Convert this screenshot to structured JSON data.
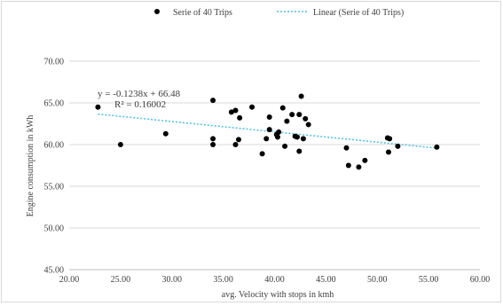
{
  "chart_data": {
    "type": "scatter",
    "title": "",
    "xlabel": "avg. Velocity with stops in kmh",
    "ylabel": "Engine consumption in kWh",
    "xlim": [
      20,
      60
    ],
    "ylim": [
      45,
      70
    ],
    "x_ticks": [
      "20.00",
      "25.00",
      "30.00",
      "35.00",
      "40.00",
      "45.00",
      "50.00",
      "55.00",
      "60.00"
    ],
    "y_ticks": [
      "45.00",
      "50.00",
      "55.00",
      "60.00",
      "65.00",
      "70.00"
    ],
    "grid": "horizontal",
    "legend_position": "top",
    "series": [
      {
        "name": "Serie of 40 Trips",
        "color": "#000000",
        "points": [
          [
            22.8,
            64.5
          ],
          [
            25.0,
            60.0
          ],
          [
            29.4,
            61.3
          ],
          [
            34.0,
            65.3
          ],
          [
            34.0,
            60.7
          ],
          [
            34.0,
            60.0
          ],
          [
            35.8,
            63.9
          ],
          [
            36.2,
            64.1
          ],
          [
            36.2,
            60.0
          ],
          [
            36.5,
            60.6
          ],
          [
            36.6,
            63.2
          ],
          [
            37.8,
            64.5
          ],
          [
            38.8,
            58.9
          ],
          [
            39.2,
            60.7
          ],
          [
            39.5,
            63.3
          ],
          [
            39.5,
            61.8
          ],
          [
            40.2,
            61.2
          ],
          [
            40.3,
            60.9
          ],
          [
            40.4,
            61.5
          ],
          [
            40.8,
            64.4
          ],
          [
            41.0,
            59.8
          ],
          [
            41.2,
            62.8
          ],
          [
            41.7,
            63.6
          ],
          [
            42.0,
            61.0
          ],
          [
            42.4,
            63.6
          ],
          [
            42.4,
            59.2
          ],
          [
            42.6,
            65.8
          ],
          [
            42.8,
            60.7
          ],
          [
            43.0,
            63.1
          ],
          [
            43.3,
            62.4
          ],
          [
            47.0,
            59.6
          ],
          [
            47.2,
            57.5
          ],
          [
            48.2,
            57.3
          ],
          [
            48.8,
            58.1
          ],
          [
            51.0,
            60.8
          ],
          [
            51.1,
            59.1
          ],
          [
            51.2,
            60.7
          ],
          [
            52.0,
            59.8
          ],
          [
            55.8,
            59.7
          ],
          [
            42.2,
            60.9
          ]
        ]
      },
      {
        "name": "Linear  (Serie of 40 Trips)",
        "type": "trendline",
        "color": "#4bc3e0",
        "slope": -0.1238,
        "intercept": 66.48,
        "x_range": [
          22.8,
          55.8
        ]
      }
    ],
    "annotations": {
      "equation": "y = -0.1238x + 66.48",
      "r_squared": "R² = 0.16002"
    }
  }
}
